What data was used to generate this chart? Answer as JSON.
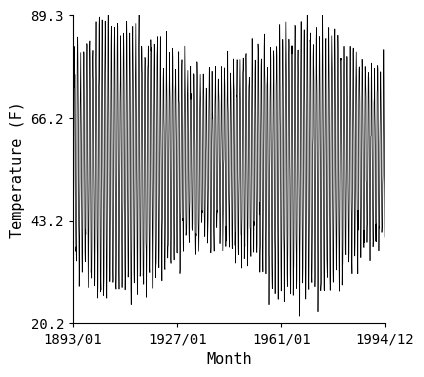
{
  "title": "",
  "xlabel": "Month",
  "ylabel": "Temperature (F)",
  "start_year": 1893,
  "start_month": 1,
  "end_year": 1994,
  "end_month": 12,
  "ylim": [
    20.2,
    89.3
  ],
  "yticks": [
    20.2,
    43.2,
    66.2,
    89.3
  ],
  "xtick_labels": [
    "1893/01",
    "1927/01",
    "1961/01",
    "1994/12"
  ],
  "xtick_years": [
    1893.0,
    1927.0,
    1961.0,
    1994.917
  ],
  "mean_temp": 57.0,
  "amplitude": 23.5,
  "noise_std": 3.0,
  "line_color": "#000000",
  "line_width": 0.5,
  "bg_color": "#ffffff",
  "font_size": 10,
  "tick_font_size": 10
}
